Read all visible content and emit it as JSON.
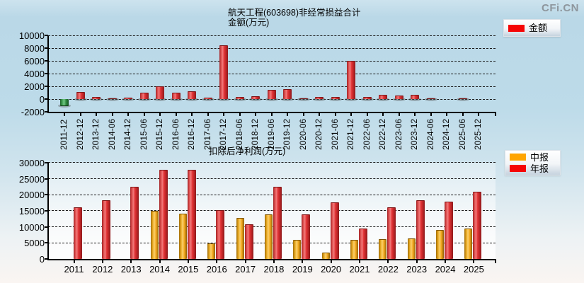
{
  "logo": {
    "text": "CFi.CN",
    "color": "#8e969d"
  },
  "chart_data": [
    {
      "type": "bar",
      "title": "航天工程(603698)非经常损益合计",
      "subtitle": "金额(万元)",
      "ylabel": "金额(万元)",
      "xlabel": "",
      "legend": [
        {
          "label": "金额",
          "color": "#f50505"
        }
      ],
      "legend_position": "top-right",
      "grid": "horizontal-dashed",
      "ylim": [
        -2000,
        10000
      ],
      "ytick_step": 2000,
      "yticks": [
        "10000",
        "8000",
        "6000",
        "4000",
        "2000",
        "0",
        "-2000"
      ],
      "bar_color_positive": "#e33537",
      "bar_color_negative": "#2f8d41",
      "categories": [
        "2011-12",
        "2012-12",
        "2013-12",
        "2014-06",
        "2014-12",
        "2015-06",
        "2015-12",
        "2016-06",
        "2016-12",
        "2017-06",
        "2017-12",
        "2018-06",
        "2018-12",
        "2019-06",
        "2019-12",
        "2020-06",
        "2020-12",
        "2021-06",
        "2021-12",
        "2022-06",
        "2022-12",
        "2023-06",
        "2023-12",
        "2024-06",
        "2024-12",
        "2025-06",
        "2025-12"
      ],
      "values": [
        -1100,
        1100,
        350,
        150,
        250,
        1000,
        1950,
        1000,
        1200,
        250,
        8500,
        300,
        400,
        1500,
        1600,
        150,
        350,
        300,
        6000,
        300,
        650,
        550,
        700,
        150,
        0,
        120,
        0
      ]
    },
    {
      "type": "bar",
      "title": "扣除后净利润(万元)",
      "ylabel": "扣除后净利润(万元)",
      "xlabel": "",
      "legend": [
        {
          "label": "中报",
          "color": "#ffa502"
        },
        {
          "label": "年报",
          "color": "#f50505"
        }
      ],
      "legend_position": "top-right",
      "grid": "horizontal-dashed",
      "ylim": [
        0,
        30000
      ],
      "ytick_step": 5000,
      "yticks": [
        "30000",
        "25000",
        "20000",
        "15000",
        "10000",
        "5000",
        "0"
      ],
      "categories": [
        "2011",
        "2012",
        "2013",
        "2014",
        "2015",
        "2016",
        "2017",
        "2018",
        "2019",
        "2020",
        "2021",
        "2022",
        "2023",
        "2024",
        "2025"
      ],
      "series": [
        {
          "name": "中报",
          "color": "#ffa502",
          "values": [
            null,
            null,
            null,
            14900,
            14200,
            4900,
            12900,
            14000,
            5900,
            2000,
            6000,
            6200,
            6400,
            9100,
            9500
          ]
        },
        {
          "name": "年报",
          "color": "#f50505",
          "values": [
            16000,
            18300,
            22500,
            27900,
            27700,
            15300,
            10800,
            22400,
            14000,
            17700,
            9500,
            16200,
            18200,
            17900,
            21000
          ]
        }
      ]
    }
  ]
}
